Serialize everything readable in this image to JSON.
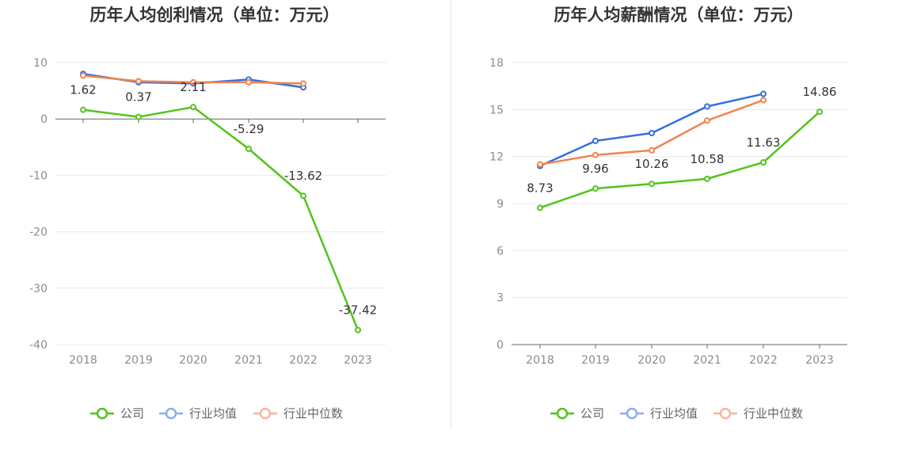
{
  "colors": {
    "company": "#52c41a",
    "industry_avg": "#3470de",
    "industry_median": "#f0834f",
    "legend_avg": "#8daeee",
    "legend_median": "#f8b699",
    "grid": "#e9e9e9",
    "axis": "#666666"
  },
  "legend": [
    "公司",
    "行业均值",
    "行业中位数"
  ],
  "chart_data": [
    {
      "type": "line",
      "title": "历年人均创利情况（单位：万元）",
      "categories": [
        "2018",
        "2019",
        "2020",
        "2021",
        "2022",
        "2023"
      ],
      "ylim": [
        -40,
        10
      ],
      "yticks": [
        10,
        0,
        -10,
        -20,
        -30,
        -40
      ],
      "grid": true,
      "legend_position": "bottom",
      "series": [
        {
          "name": "公司",
          "values": [
            1.62,
            0.37,
            2.11,
            -5.29,
            -13.62,
            -37.42
          ],
          "labels": [
            "1.62",
            "0.37",
            "2.11",
            "-5.29",
            "-13.62",
            "-37.42"
          ]
        },
        {
          "name": "行业均值",
          "values": [
            8.0,
            6.5,
            6.3,
            7.0,
            5.6,
            null
          ]
        },
        {
          "name": "行业中位数",
          "values": [
            7.7,
            6.7,
            6.5,
            6.5,
            6.3,
            null
          ]
        }
      ]
    },
    {
      "type": "line",
      "title": "历年人均薪酬情况（单位：万元）",
      "categories": [
        "2018",
        "2019",
        "2020",
        "2021",
        "2022",
        "2023"
      ],
      "ylim": [
        0,
        18
      ],
      "yticks": [
        18,
        15,
        12,
        9,
        6,
        3,
        0
      ],
      "grid": true,
      "legend_position": "bottom",
      "series": [
        {
          "name": "公司",
          "values": [
            8.73,
            9.96,
            10.26,
            10.58,
            11.63,
            14.86
          ],
          "labels": [
            "8.73",
            "9.96",
            "10.26",
            "10.58",
            "11.63",
            "14.86"
          ]
        },
        {
          "name": "行业均值",
          "values": [
            11.4,
            13.0,
            13.5,
            15.2,
            16.0,
            null
          ]
        },
        {
          "name": "行业中位数",
          "values": [
            11.5,
            12.1,
            12.4,
            14.3,
            15.6,
            null
          ]
        }
      ]
    }
  ]
}
